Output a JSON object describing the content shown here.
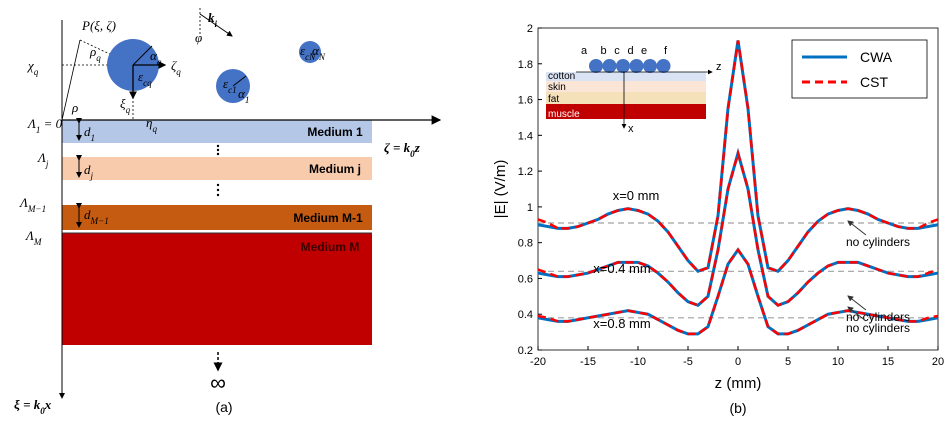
{
  "diagram": {
    "labels": [
      {
        "text": "P(ξ, ζ)"
      },
      {
        "text": "ρ",
        "sub": "q"
      },
      {
        "text": "ρ"
      },
      {
        "text": "χ",
        "sub": "q"
      },
      {
        "text": "α",
        "sub": "q"
      },
      {
        "text": "ζ",
        "sub": "q"
      },
      {
        "text": "ε",
        "sub": "cq"
      },
      {
        "text": "ξ",
        "sub": "q"
      },
      {
        "text": "η",
        "sub": "q"
      },
      {
        "text": "k",
        "sub": "i"
      },
      {
        "text": "φ"
      },
      {
        "text": "ε",
        "sub": "cN"
      },
      {
        "text": "α",
        "sub": "N"
      },
      {
        "text": "ε",
        "sub": "c1"
      },
      {
        "text": "α",
        "sub": "1"
      },
      {
        "text": "Λ",
        "sub": "1",
        "after": " = 0"
      },
      {
        "text": "d",
        "sub": "1"
      },
      {
        "text": "Λ",
        "sub": "j"
      },
      {
        "text": "d",
        "sub": "j"
      },
      {
        "text": "Λ",
        "sub": "M−1"
      },
      {
        "text": "d",
        "sub": "M−1"
      },
      {
        "text": "Λ",
        "sub": "M"
      },
      {
        "text": "ζ = k",
        "sub": "0",
        "after": "z"
      },
      {
        "text": "ξ = k",
        "sub": "0",
        "after": "x"
      }
    ],
    "media": [
      "Medium 1",
      "Medium j",
      "Medium M-1",
      "Medium M"
    ],
    "infinity": "∞",
    "panel_label": "(a)"
  },
  "chart_data": {
    "type": "line",
    "panel_label": "(b)",
    "x_label": "z (mm)",
    "y_label": "|E| (V/m)",
    "x": [
      -20,
      -19,
      -18,
      -17,
      -16,
      -15,
      -14,
      -13,
      -12,
      -11,
      -10,
      -9,
      -8,
      -7,
      -6,
      -5,
      -4,
      -3,
      -2,
      -1,
      0,
      1,
      2,
      3,
      4,
      5,
      6,
      7,
      8,
      9,
      10,
      11,
      12,
      13,
      14,
      15,
      16,
      17,
      18,
      19,
      20
    ],
    "series": [
      {
        "name": "CWA",
        "color": "#0070c0",
        "dash": false,
        "values": [
          [
            0.9,
            0.89,
            0.88,
            0.88,
            0.89,
            0.91,
            0.93,
            0.96,
            0.98,
            0.99,
            0.98,
            0.96,
            0.92,
            0.86,
            0.78,
            0.7,
            0.64,
            0.66,
            0.95,
            1.55,
            1.93,
            1.55,
            0.95,
            0.66,
            0.64,
            0.7,
            0.78,
            0.86,
            0.92,
            0.96,
            0.98,
            0.99,
            0.98,
            0.96,
            0.93,
            0.91,
            0.89,
            0.88,
            0.88,
            0.89,
            0.9
          ],
          [
            0.63,
            0.62,
            0.61,
            0.61,
            0.62,
            0.63,
            0.65,
            0.67,
            0.69,
            0.69,
            0.69,
            0.67,
            0.63,
            0.58,
            0.52,
            0.47,
            0.45,
            0.5,
            0.76,
            1.1,
            1.3,
            1.1,
            0.76,
            0.5,
            0.45,
            0.47,
            0.52,
            0.58,
            0.63,
            0.67,
            0.69,
            0.69,
            0.69,
            0.67,
            0.65,
            0.63,
            0.62,
            0.61,
            0.61,
            0.62,
            0.63
          ],
          [
            0.38,
            0.37,
            0.36,
            0.36,
            0.37,
            0.38,
            0.39,
            0.4,
            0.41,
            0.42,
            0.41,
            0.4,
            0.37,
            0.34,
            0.31,
            0.29,
            0.29,
            0.33,
            0.5,
            0.68,
            0.76,
            0.68,
            0.5,
            0.33,
            0.29,
            0.29,
            0.31,
            0.34,
            0.37,
            0.4,
            0.41,
            0.42,
            0.41,
            0.4,
            0.39,
            0.38,
            0.37,
            0.36,
            0.36,
            0.37,
            0.38
          ]
        ]
      },
      {
        "name": "CST",
        "color": "#ff0000",
        "dash": true,
        "values": [
          [
            0.93,
            0.91,
            0.88,
            0.88,
            0.89,
            0.91,
            0.93,
            0.96,
            0.98,
            0.99,
            0.98,
            0.96,
            0.92,
            0.86,
            0.78,
            0.7,
            0.64,
            0.66,
            0.95,
            1.55,
            1.93,
            1.55,
            0.95,
            0.66,
            0.64,
            0.7,
            0.78,
            0.86,
            0.92,
            0.96,
            0.98,
            0.99,
            0.98,
            0.96,
            0.93,
            0.91,
            0.89,
            0.88,
            0.88,
            0.91,
            0.93
          ],
          [
            0.65,
            0.63,
            0.61,
            0.61,
            0.62,
            0.63,
            0.65,
            0.67,
            0.69,
            0.69,
            0.69,
            0.67,
            0.63,
            0.58,
            0.52,
            0.47,
            0.45,
            0.5,
            0.76,
            1.1,
            1.3,
            1.1,
            0.76,
            0.5,
            0.45,
            0.47,
            0.52,
            0.58,
            0.63,
            0.67,
            0.69,
            0.69,
            0.69,
            0.67,
            0.65,
            0.63,
            0.62,
            0.61,
            0.61,
            0.63,
            0.65
          ],
          [
            0.39,
            0.38,
            0.36,
            0.36,
            0.37,
            0.38,
            0.39,
            0.4,
            0.41,
            0.42,
            0.41,
            0.4,
            0.37,
            0.34,
            0.31,
            0.29,
            0.29,
            0.33,
            0.5,
            0.68,
            0.76,
            0.68,
            0.5,
            0.33,
            0.29,
            0.29,
            0.31,
            0.34,
            0.37,
            0.4,
            0.41,
            0.42,
            0.41,
            0.4,
            0.39,
            0.38,
            0.37,
            0.36,
            0.36,
            0.38,
            0.39
          ]
        ]
      }
    ],
    "curve_labels": [
      "x=0 mm",
      "x=0.4 mm",
      "x=0.8 mm"
    ],
    "reference_lines": [
      0.91,
      0.64,
      0.38
    ],
    "reference_color": "#a0a0a0",
    "reference_labels": [
      "no cylinders",
      "no cylinders",
      "no cylinders"
    ],
    "xlim": [
      -20,
      20
    ],
    "xticks": [
      -20,
      -15,
      -10,
      -5,
      0,
      5,
      10,
      15,
      20
    ],
    "ylim": [
      0.2,
      2
    ],
    "yticks": [
      0.2,
      0.4,
      0.6,
      0.8,
      1,
      1.2,
      1.4,
      1.6,
      1.8,
      2
    ],
    "legend": "top-right",
    "inset": {
      "cylinders": [
        "a",
        "b",
        "c",
        "d",
        "e",
        "f"
      ],
      "layers": [
        "cotton",
        "skin",
        "fat",
        "muscle"
      ],
      "axis_z": "z",
      "axis_x": "x"
    }
  }
}
